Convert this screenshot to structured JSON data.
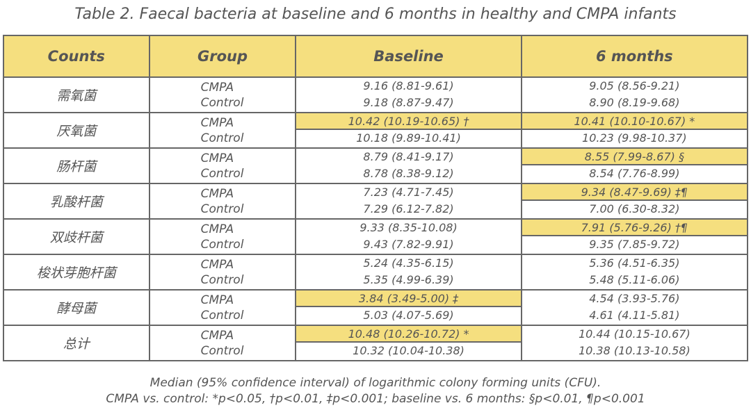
{
  "title": "Table 2. Faecal bacteria at baseline and 6 months in healthy and CMPA infants",
  "headers": [
    "Counts",
    "Group",
    "Baseline",
    "6 months"
  ],
  "highlight_color": "#f5df7f",
  "rows": [
    {
      "count": "需氧菌",
      "groups": [
        "CMPA",
        "Control"
      ],
      "baseline": [
        "9.16 (8.81-9.61)",
        "9.18 (8.87-9.47)"
      ],
      "months6": [
        "9.05 (8.56-9.21)",
        "8.90 (8.19-9.68)"
      ],
      "hl_baseline": false,
      "hl_months6": false
    },
    {
      "count": "厌氧菌",
      "groups": [
        "CMPA",
        "Control"
      ],
      "baseline": [
        "10.42 (10.19-10.65) †",
        "10.18 (9.89-10.41)"
      ],
      "months6": [
        "10.41 (10.10-10.67) *",
        "10.23 (9.98-10.37)"
      ],
      "hl_baseline": true,
      "hl_months6": true
    },
    {
      "count": "肠杆菌",
      "groups": [
        "CMPA",
        "Control"
      ],
      "baseline": [
        "8.79 (8.41-9.17)",
        "8.78 (8.38-9.12)"
      ],
      "months6": [
        "8.55 (7.99-8.67) §",
        "8.54 (7.76-8.99)"
      ],
      "hl_baseline": false,
      "hl_months6": true
    },
    {
      "count": "乳酸杆菌",
      "groups": [
        "CMPA",
        "Control"
      ],
      "baseline": [
        "7.23 (4.71-7.45)",
        "7.29 (6.12-7.82)"
      ],
      "months6": [
        "9.34 (8.47-9.69) ‡¶",
        "7.00 (6.30-8.32)"
      ],
      "hl_baseline": false,
      "hl_months6": true
    },
    {
      "count": "双歧杆菌",
      "groups": [
        "CMPA",
        "Control"
      ],
      "baseline": [
        "9.33 (8.35-10.08)",
        "9.43 (7.82-9.91)"
      ],
      "months6": [
        "7.91 (5.76-9.26) †¶",
        "9.35 (7.85-9.72)"
      ],
      "hl_baseline": false,
      "hl_months6": true
    },
    {
      "count": "梭状芽胞杆菌",
      "groups": [
        "CMPA",
        "Control"
      ],
      "baseline": [
        "5.24 (4.35-6.15)",
        "5.35 (4.99-6.39)"
      ],
      "months6": [
        "5.36 (4.51-6.35)",
        "5.48 (5.11-6.06)"
      ],
      "hl_baseline": false,
      "hl_months6": false
    },
    {
      "count": "酵母菌",
      "groups": [
        "CMPA",
        "Control"
      ],
      "baseline": [
        "3.84 (3.49-5.00) ‡",
        "5.03 (4.07-5.69)"
      ],
      "months6": [
        "4.54 (3.93-5.76)",
        "4.61 (4.11-5.81)"
      ],
      "hl_baseline": true,
      "hl_months6": false
    },
    {
      "count": "总计",
      "groups": [
        "CMPA",
        "Control"
      ],
      "baseline": [
        "10.48 (10.26-10.72) *",
        "10.32 (10.04-10.38)"
      ],
      "months6": [
        "10.44 (10.15-10.67)",
        "10.38 (10.13-10.58)"
      ],
      "hl_baseline": true,
      "hl_months6": false
    }
  ],
  "notes": [
    "Median (95% confidence interval) of logarithmic colony forming units (CFU).",
    "CMPA vs. control: *p<0.05, †p<0.01, ‡p<0.001; baseline vs. 6 months: §p<0.01, ¶p<0.001"
  ]
}
